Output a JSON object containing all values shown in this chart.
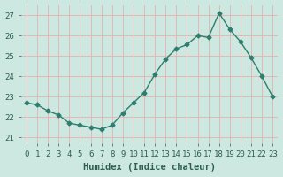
{
  "x": [
    0,
    1,
    2,
    3,
    4,
    5,
    6,
    7,
    8,
    9,
    10,
    11,
    12,
    13,
    14,
    15,
    16,
    17,
    18,
    19,
    20,
    21,
    22,
    23
  ],
  "y": [
    22.7,
    22.6,
    22.3,
    22.1,
    21.7,
    21.6,
    21.5,
    21.4,
    21.6,
    22.2,
    22.7,
    23.2,
    24.1,
    24.85,
    25.35,
    25.55,
    26.0,
    25.9,
    27.1,
    26.3,
    25.7,
    24.9,
    24.0,
    23.0
  ],
  "line_color": "#2e7d6e",
  "marker": "D",
  "markersize": 2.5,
  "linewidth": 1.0,
  "bg_color": "#cce8e0",
  "grid_color": "#e8b0b0",
  "xlabel": "Humidex (Indice chaleur)",
  "ylabel": "",
  "xlim": [
    -0.5,
    23.5
  ],
  "ylim": [
    20.7,
    27.5
  ],
  "yticks": [
    21,
    22,
    23,
    24,
    25,
    26,
    27
  ],
  "xticks": [
    0,
    1,
    2,
    3,
    4,
    5,
    6,
    7,
    8,
    9,
    10,
    11,
    12,
    13,
    14,
    15,
    16,
    17,
    18,
    19,
    20,
    21,
    22,
    23
  ],
  "tick_fontsize": 6.5,
  "xlabel_fontsize": 7.5,
  "title": ""
}
